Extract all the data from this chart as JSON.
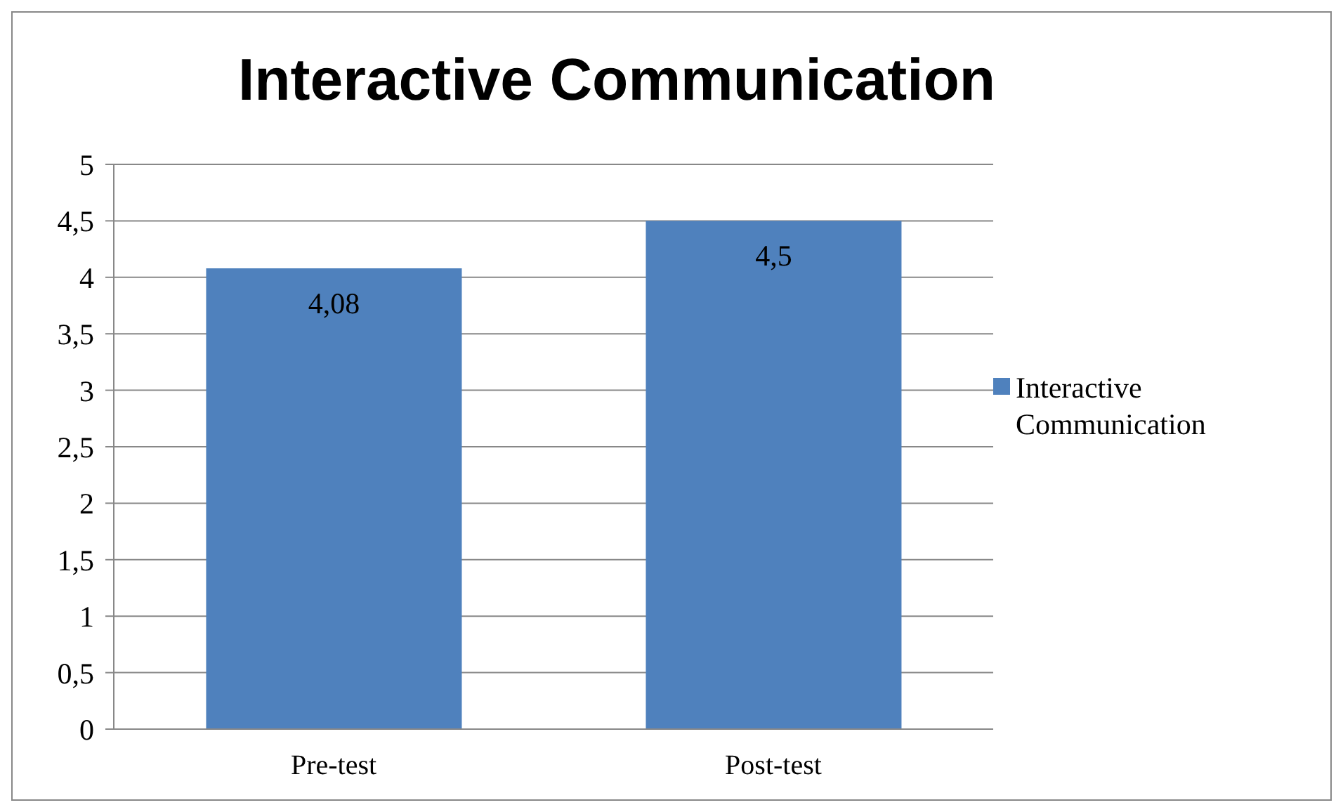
{
  "chart_data": {
    "type": "bar",
    "title": "Interactive Communication",
    "categories": [
      "Pre-test",
      "Post-test"
    ],
    "series": [
      {
        "name": "Interactive Communication",
        "color": "#4f81bd",
        "values": [
          4.08,
          4.5
        ],
        "value_labels": [
          "4,08",
          "4,5"
        ]
      }
    ],
    "ylim": [
      0,
      5
    ],
    "yticks": [
      0,
      {
        "value": 0.5,
        "label": "0,5"
      },
      1,
      {
        "value": 1.5,
        "label": "1,5"
      },
      2,
      {
        "value": 2.5,
        "label": "2,5"
      },
      3,
      {
        "value": 3.5,
        "label": "3,5"
      },
      4,
      {
        "value": 4.5,
        "label": "4,5"
      },
      5
    ],
    "grid": "y",
    "legend": "right"
  }
}
